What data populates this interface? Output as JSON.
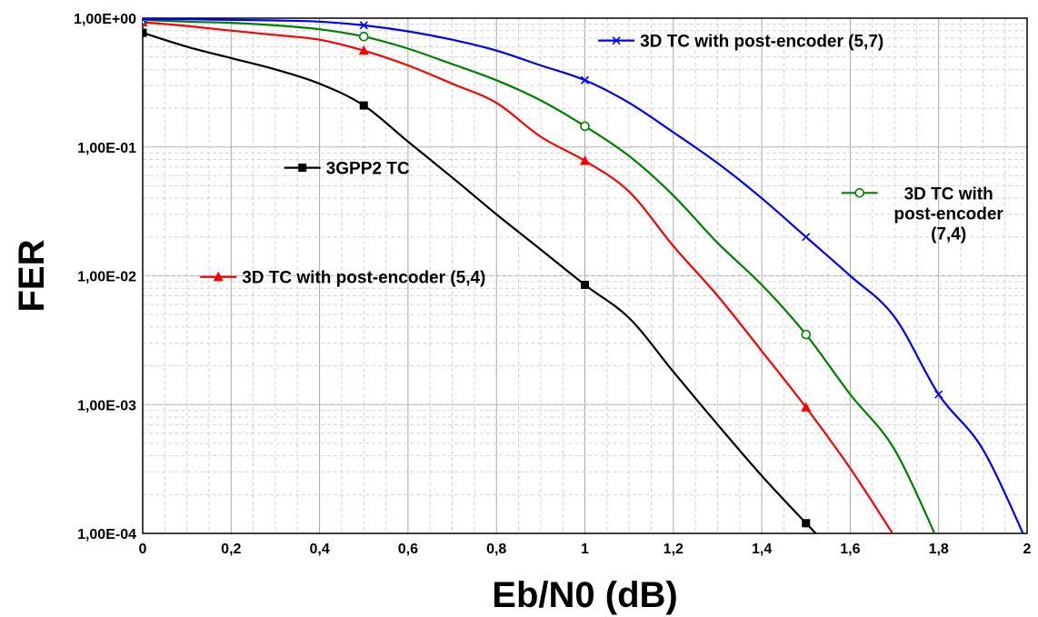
{
  "chart_data": {
    "type": "line",
    "title": "",
    "xlabel": "Eb/N0 (dB)",
    "ylabel": "FER",
    "xlim": [
      0,
      2
    ],
    "ylim": [
      0.0001,
      1
    ],
    "yscale": "log",
    "grid": true,
    "xticks": [
      {
        "value": 0,
        "label": "0"
      },
      {
        "value": 0.2,
        "label": "0,2"
      },
      {
        "value": 0.4,
        "label": "0,4"
      },
      {
        "value": 0.6,
        "label": "0,6"
      },
      {
        "value": 0.8,
        "label": "0,8"
      },
      {
        "value": 1,
        "label": "1"
      },
      {
        "value": 1.2,
        "label": "1,2"
      },
      {
        "value": 1.4,
        "label": "1,4"
      },
      {
        "value": 1.6,
        "label": "1,6"
      },
      {
        "value": 1.8,
        "label": "1,8"
      },
      {
        "value": 2,
        "label": "2"
      }
    ],
    "yticks": [
      {
        "value": 1,
        "label": "1,00E+00"
      },
      {
        "value": 0.1,
        "label": "1,00E-01"
      },
      {
        "value": 0.01,
        "label": "1,00E-02"
      },
      {
        "value": 0.001,
        "label": "1,00E-03"
      },
      {
        "value": 0.0001,
        "label": "1,00E-04"
      }
    ],
    "series": [
      {
        "name": "3GPP2 TC",
        "color": "#000000",
        "marker": "square",
        "x": [
          0,
          0.1,
          0.2,
          0.3,
          0.4,
          0.5,
          0.6,
          0.7,
          0.8,
          0.9,
          1.0,
          1.1,
          1.2,
          1.3,
          1.4,
          1.5,
          1.55
        ],
        "y": [
          0.77,
          0.6,
          0.49,
          0.4,
          0.31,
          0.21,
          0.11,
          0.058,
          0.03,
          0.016,
          0.0085,
          0.0047,
          0.0018,
          0.0007,
          0.00028,
          0.00012,
          8e-05
        ],
        "marker_x": [
          0,
          0.5,
          1.0,
          1.5
        ]
      },
      {
        "name": "3D TC with post-encoder  (5,4)",
        "color": "#ff0000",
        "marker": "triangle",
        "x": [
          0,
          0.1,
          0.2,
          0.3,
          0.4,
          0.5,
          0.6,
          0.7,
          0.8,
          0.9,
          1.0,
          1.1,
          1.2,
          1.3,
          1.4,
          1.5,
          1.6,
          1.7
        ],
        "y": [
          0.93,
          0.87,
          0.8,
          0.74,
          0.68,
          0.56,
          0.43,
          0.31,
          0.22,
          0.12,
          0.078,
          0.045,
          0.017,
          0.007,
          0.0026,
          0.00095,
          0.00032,
          9.5e-05
        ],
        "marker_x": [
          0,
          0.5,
          1.0,
          1.5
        ]
      },
      {
        "name": "3D TC with post-encoder (7,4)",
        "color": "#008000",
        "marker": "circle",
        "x": [
          0,
          0.1,
          0.2,
          0.3,
          0.4,
          0.5,
          0.6,
          0.7,
          0.8,
          0.9,
          1.0,
          1.1,
          1.2,
          1.3,
          1.4,
          1.5,
          1.6,
          1.7,
          1.8
        ],
        "y": [
          0.97,
          0.94,
          0.92,
          0.88,
          0.82,
          0.72,
          0.58,
          0.44,
          0.33,
          0.23,
          0.145,
          0.085,
          0.042,
          0.018,
          0.0085,
          0.0035,
          0.0012,
          0.00045,
          8.5e-05
        ],
        "marker_x": [
          0,
          0.5,
          1.0,
          1.5
        ]
      },
      {
        "name": "3D TC with post-encoder  (5,7)",
        "color": "#0000ff",
        "marker": "x",
        "x": [
          0,
          0.1,
          0.2,
          0.3,
          0.4,
          0.5,
          0.6,
          0.7,
          0.8,
          0.9,
          1.0,
          1.1,
          1.2,
          1.3,
          1.4,
          1.5,
          1.6,
          1.7,
          1.8,
          1.9,
          2.0
        ],
        "y": [
          0.98,
          0.98,
          0.97,
          0.96,
          0.94,
          0.88,
          0.79,
          0.68,
          0.56,
          0.43,
          0.33,
          0.22,
          0.13,
          0.075,
          0.04,
          0.02,
          0.01,
          0.0048,
          0.0012,
          0.00045,
          8.5e-05
        ],
        "marker_x": [
          0,
          0.5,
          1.0,
          1.5,
          1.8
        ]
      }
    ],
    "annotations": [
      {
        "series": 3,
        "lines": [
          "3D TC with post-encoder  (5,7)"
        ],
        "anchor_x": 1.03,
        "anchor_y": 0.67,
        "align": "left"
      },
      {
        "series": 0,
        "lines": [
          "3GPP2 TC"
        ],
        "anchor_x": 0.32,
        "anchor_y": 0.069,
        "align": "left"
      },
      {
        "series": 2,
        "lines": [
          "3D TC with",
          "post-encoder",
          "(7,4)"
        ],
        "anchor_x": 1.58,
        "anchor_y": 0.044,
        "align": "center"
      },
      {
        "series": 1,
        "lines": [
          "3D TC with post-encoder  (5,4)"
        ],
        "anchor_x": 0.13,
        "anchor_y": 0.0098,
        "align": "left"
      }
    ]
  }
}
